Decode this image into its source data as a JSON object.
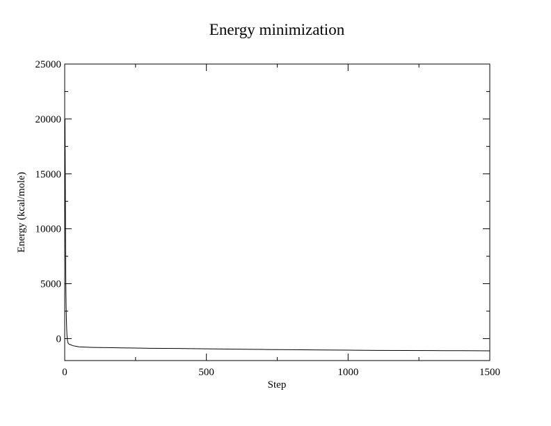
{
  "chart_data": {
    "type": "line",
    "title": "Energy minimization",
    "xlabel": "Step",
    "ylabel": "Energy (kcal/mole)",
    "xlim": [
      0,
      1500
    ],
    "ylim": [
      -2000,
      25000
    ],
    "x_ticks": [
      0,
      500,
      1000,
      1500
    ],
    "y_ticks": [
      0,
      5000,
      10000,
      15000,
      20000,
      25000
    ],
    "x_minor_step": 250,
    "y_minor_step": 2500,
    "grid": false,
    "legend": "none",
    "line_color": "#000000",
    "series": [
      {
        "x": [
          0,
          1,
          2,
          3,
          4,
          5,
          6,
          7,
          8,
          10,
          12,
          15,
          20,
          25,
          30,
          40,
          50,
          75,
          100,
          150,
          200,
          250,
          300,
          400,
          500,
          600,
          700,
          800,
          900,
          1000,
          1100,
          1200,
          1300,
          1400,
          1500
        ],
        "values": [
          14000,
          20000,
          15000,
          9000,
          5000,
          3000,
          1800,
          900,
          300,
          -200,
          -400,
          -500,
          -550,
          -600,
          -650,
          -700,
          -750,
          -780,
          -800,
          -820,
          -840,
          -860,
          -880,
          -900,
          -930,
          -960,
          -990,
          -1010,
          -1030,
          -1050,
          -1070,
          -1080,
          -1090,
          -1100,
          -1110
        ]
      }
    ]
  }
}
